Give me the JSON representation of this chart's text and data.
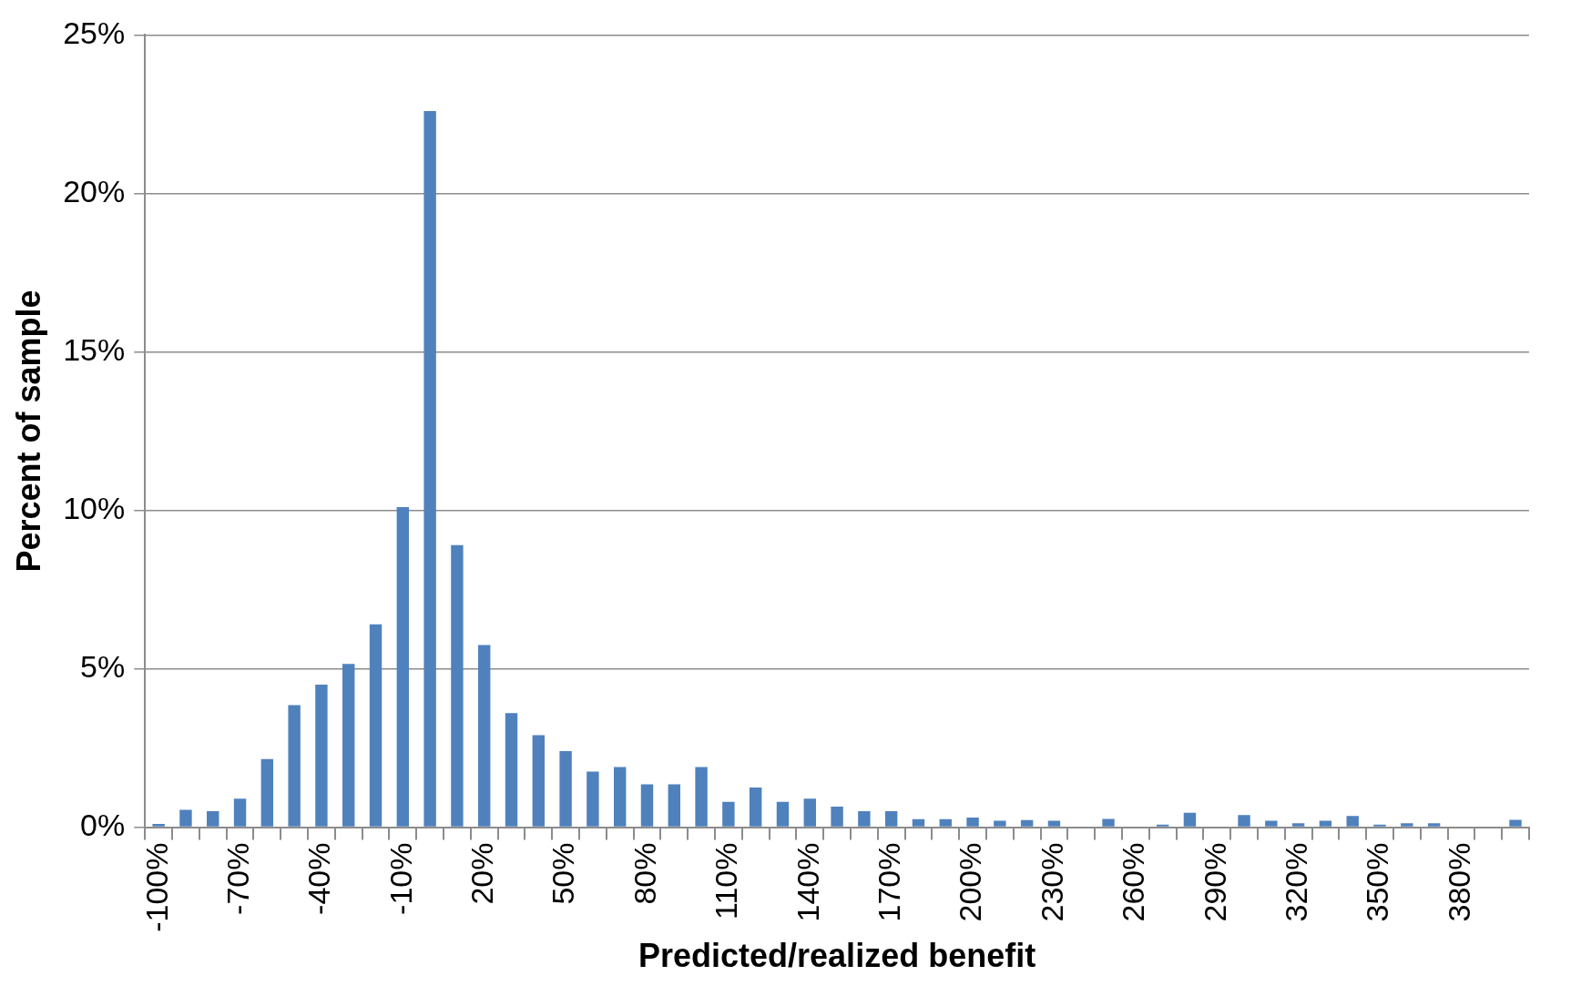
{
  "chart_data": {
    "type": "bar",
    "xlabel": "Predicted/realized benefit",
    "ylabel": "Percent of sample",
    "categories": [
      "-100%",
      null,
      null,
      "-70%",
      null,
      null,
      "-40%",
      null,
      null,
      "-10%",
      null,
      null,
      "20%",
      null,
      null,
      "50%",
      null,
      null,
      "80%",
      null,
      null,
      "110%",
      null,
      null,
      "140%",
      null,
      null,
      "170%",
      null,
      null,
      "200%",
      null,
      null,
      "230%",
      null,
      null,
      "260%",
      null,
      null,
      "290%",
      null,
      null,
      "320%",
      null,
      null,
      "350%",
      null,
      null,
      "380%",
      null,
      null
    ],
    "values": [
      0.1,
      0.55,
      0.5,
      0.9,
      2.15,
      3.85,
      4.5,
      5.15,
      6.4,
      10.1,
      22.6,
      8.9,
      5.75,
      3.6,
      2.9,
      2.4,
      1.75,
      1.9,
      1.35,
      1.35,
      1.9,
      0.8,
      1.25,
      0.8,
      0.9,
      0.65,
      0.5,
      0.5,
      0.25,
      0.25,
      0.3,
      0.2,
      0.22,
      0.2,
      0,
      0.26,
      0,
      0.08,
      0.45,
      0,
      0.38,
      0.2,
      0.12,
      0.2,
      0.35,
      0.08,
      0.12,
      0.12,
      0,
      0,
      0.23
    ],
    "color": "#4f81bd",
    "ylim": [
      0,
      25
    ],
    "yticks": [
      {
        "value": 0,
        "label": "0%"
      },
      {
        "value": 5,
        "label": "5%"
      },
      {
        "value": 10,
        "label": "10%"
      },
      {
        "value": 15,
        "label": "15%"
      },
      {
        "value": 20,
        "label": "20%"
      },
      {
        "value": 25,
        "label": "25%"
      }
    ],
    "grid": "y",
    "legend": false
  }
}
